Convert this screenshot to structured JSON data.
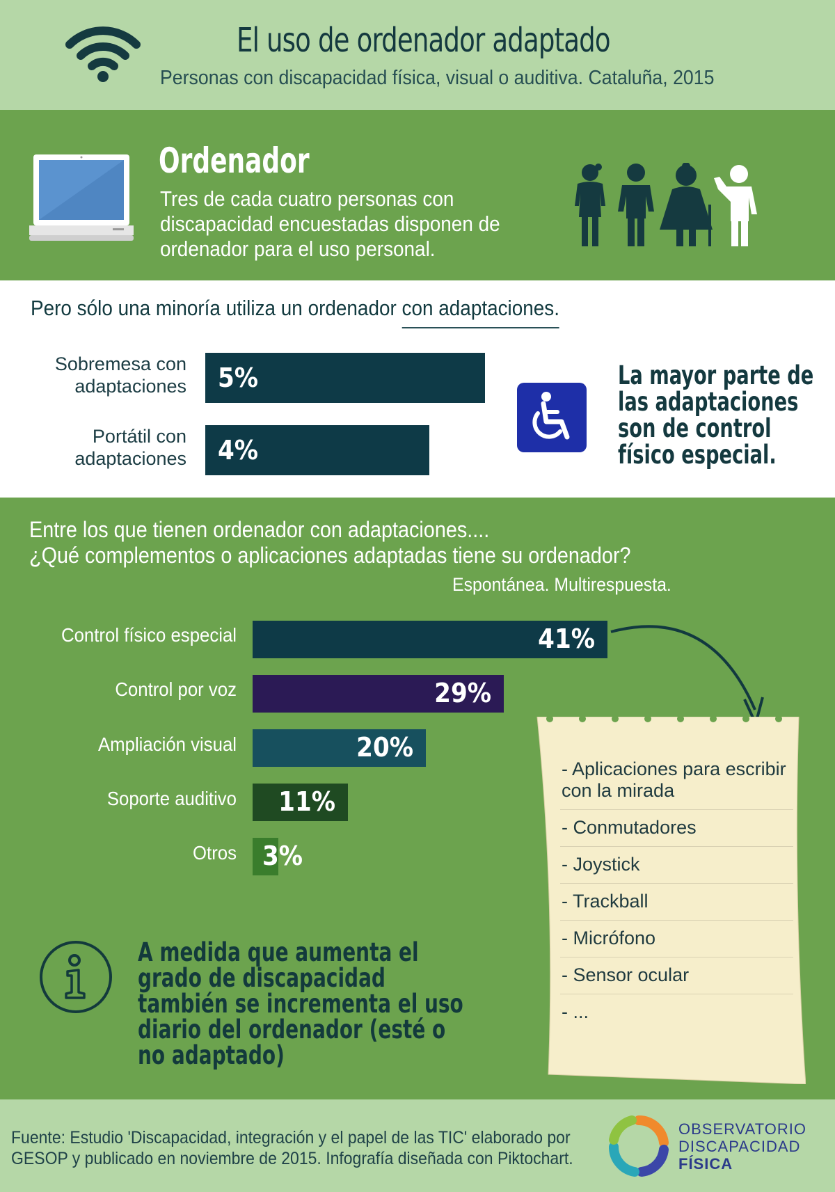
{
  "header": {
    "title": "El uso de ordenador adaptado",
    "subtitle": "Personas con discapacidad física, visual o auditiva. Cataluña, 2015",
    "icon": "wifi-icon"
  },
  "ordenador": {
    "heading": "Ordenador",
    "text": "Tres de cada cuatro personas con discapacidad encuestadas disponen de ordenador para el uso personal.",
    "icons": [
      "laptop-icon",
      "people-icon"
    ]
  },
  "minoria": {
    "title_prefix": "Pero sólo una minoría utiliza un ordenador ",
    "title_highlight": "con adaptaciones.",
    "bars": [
      {
        "label_line1": "Sobremesa con",
        "label_line2": "adaptaciones",
        "value": 5,
        "text": "5%"
      },
      {
        "label_line1": "Portátil con",
        "label_line2": "adaptaciones",
        "value": 4,
        "text": "4%"
      }
    ],
    "callout": "La mayor parte de las adaptaciones son de control físico especial.",
    "icon": "wheelchair-icon"
  },
  "complementos": {
    "question_line1": "Entre los que tienen ordenador con adaptaciones....",
    "question_line2": "¿Qué complementos o aplicaciones adaptadas tiene su ordenador?",
    "note": "Espontánea. Multirespuesta.",
    "bars": [
      {
        "label": "Control físico especial",
        "value": 41,
        "text": "41%",
        "color": "#0e3a47"
      },
      {
        "label": "Control por voz",
        "value": 29,
        "text": "29%",
        "color": "#2b1a55"
      },
      {
        "label": "Ampliación visual",
        "value": 20,
        "text": "20%",
        "color": "#17505e"
      },
      {
        "label": "Soporte auditivo",
        "value": 11,
        "text": "11%",
        "color": "#1f4a22"
      },
      {
        "label": "Otros",
        "value": 3,
        "text": "3%",
        "color": "#3a7d2c"
      }
    ],
    "list": [
      "- Aplicaciones  para escribir con la mirada",
      "- Conmutadores",
      "- Joystick",
      "- Trackball",
      "- Micrófono",
      "- Sensor ocular",
      "- ..."
    ]
  },
  "info": {
    "text": "A medida que aumenta el grado de discapacidad también se incrementa el uso diario del ordenador (esté o no adaptado)",
    "icon": "info-icon"
  },
  "footer": {
    "source": "Fuente: Estudio 'Discapacidad, integración y el papel de las TIC' elaborado por GESOP y publicado en noviembre de 2015. Infografía diseñada con Piktochart.",
    "logo_line1": "OBSERVATORIO",
    "logo_line2": "DISCAPACIDAD",
    "logo_line3": "FÍSICA"
  },
  "colors": {
    "light_green": "#b5d7a7",
    "green": "#6ca34e",
    "dark_teal": "#0e3a47",
    "paper": "#f6eecb",
    "wheelchair_blue": "#1e2fa8"
  }
}
